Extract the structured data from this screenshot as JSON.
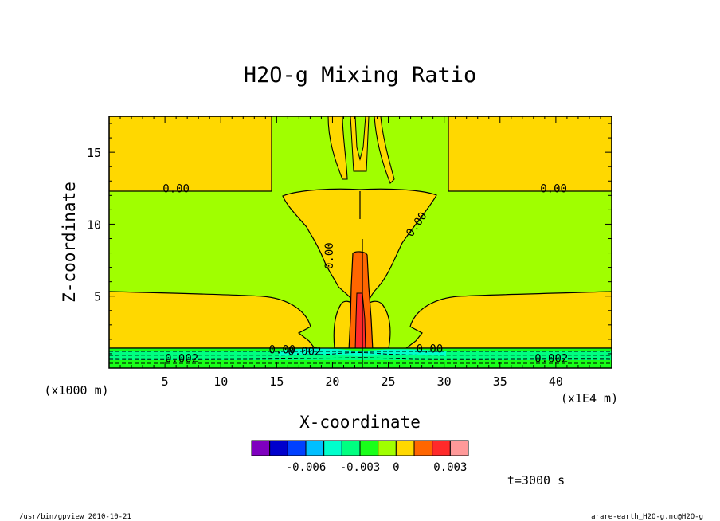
{
  "chart_data": {
    "type": "heatmap",
    "title": "H2O-g Mixing Ratio",
    "xlabel": "X-coordinate",
    "ylabel": "Z-coordinate",
    "x_unit": "(x1E4 m)",
    "y_unit": "(x1000 m)",
    "xlim": [
      0,
      45
    ],
    "ylim": [
      0,
      17.5
    ],
    "x_ticks": [
      5,
      10,
      15,
      20,
      25,
      30,
      35,
      40
    ],
    "y_ticks": [
      5,
      10,
      15
    ],
    "x_tick_labels": [
      "5",
      "10",
      "15",
      "20",
      "25",
      "30",
      "35",
      "40"
    ],
    "y_tick_labels": [
      "5",
      "10",
      "15"
    ],
    "contour_labels": [
      {
        "text": "0.00",
        "x": 6.0,
        "y": 12.5
      },
      {
        "text": "0.00",
        "x": 39.8,
        "y": 12.5
      },
      {
        "text": "0.00",
        "x": 19.7,
        "y": 7.8,
        "angle": -90
      },
      {
        "text": "0.00",
        "x": 27.5,
        "y": 10.0,
        "angle": -55
      },
      {
        "text": "0.00",
        "x": 15.5,
        "y": 1.3
      },
      {
        "text": "0.00",
        "x": 28.7,
        "y": 1.35
      },
      {
        "text": "0.002",
        "x": 17.5,
        "y": 1.2
      },
      {
        "text": "0.002",
        "x": 6.5,
        "y": 0.7
      },
      {
        "text": "0.002",
        "x": 39.6,
        "y": 0.7
      }
    ],
    "colorbar": {
      "colors": [
        "#7f00bf",
        "#0000cc",
        "#0040ff",
        "#00bfff",
        "#00ffcc",
        "#00ff80",
        "#19ff19",
        "#a0ff00",
        "#ffd800",
        "#ff6600",
        "#ff2a2a",
        "#ff9999"
      ],
      "tick_labels": [
        "-0.006",
        "-0.003",
        "0",
        "0.003"
      ]
    },
    "time_label": "t=3000 s",
    "footer_left": "/usr/bin/gpview  2010-10-21",
    "footer_right": "arare-earth_H2O-g.nc@H2O-g"
  }
}
